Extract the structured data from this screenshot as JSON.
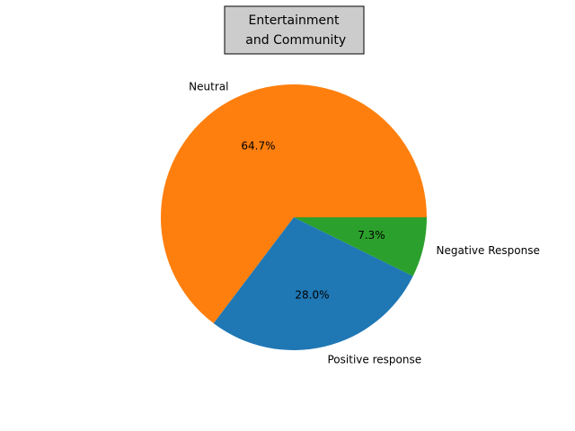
{
  "chart_data": {
    "type": "pie",
    "title_lines": [
      "Entertainment",
      " and Community"
    ],
    "categories": [
      "Positive response",
      "Neutral",
      "Negative Response"
    ],
    "values": [
      28.0,
      64.7,
      7.3
    ],
    "percent_labels": [
      "28.0%",
      "64.7%",
      "7.3%"
    ],
    "colors": [
      "#1f77b4",
      "#ff7f0e",
      "#2ca02c"
    ],
    "start_angle_deg": 0,
    "direction": "counterclockwise",
    "legend": "none"
  }
}
